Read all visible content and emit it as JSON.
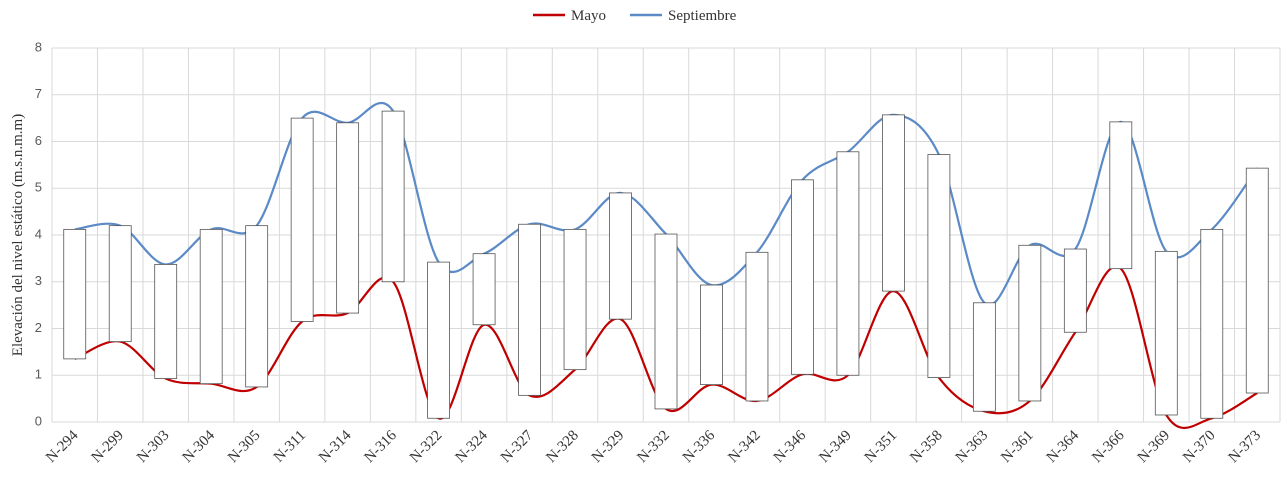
{
  "chart_data": {
    "type": "range-line",
    "ylabel": "Elevación del nivel estático (m.s.n.m.m)",
    "categories": [
      "N-294",
      "N-299",
      "N-303",
      "N-304",
      "N-305",
      "N-311",
      "N-314",
      "N-316",
      "N-322",
      "N-324",
      "N-327",
      "N-328",
      "N-329",
      "N-332",
      "N-336",
      "N-342",
      "N-346",
      "N-349",
      "N-351",
      "N-358",
      "N-363",
      "N-361",
      "N-364",
      "N-366",
      "N-369",
      "N-370",
      "N-373"
    ],
    "series": [
      {
        "name": "Mayo",
        "color": "#c00000",
        "values": [
          1.35,
          1.72,
          0.93,
          0.82,
          0.75,
          2.15,
          2.33,
          3.0,
          0.08,
          2.08,
          0.57,
          1.12,
          2.2,
          0.28,
          0.8,
          0.45,
          1.02,
          1.0,
          2.8,
          0.95,
          0.23,
          0.45,
          1.92,
          3.28,
          0.15,
          0.08,
          0.62
        ]
      },
      {
        "name": "Septiembre",
        "color": "#5b8ac6",
        "values": [
          4.12,
          4.2,
          3.37,
          4.12,
          4.2,
          6.5,
          6.4,
          6.65,
          3.42,
          3.6,
          4.23,
          4.12,
          4.9,
          4.02,
          2.93,
          3.63,
          5.18,
          5.78,
          6.57,
          5.72,
          2.55,
          3.78,
          3.7,
          6.42,
          3.65,
          4.12,
          5.43
        ]
      }
    ],
    "ylim": [
      0,
      8
    ],
    "yticks": [
      0,
      1,
      2,
      3,
      4,
      5,
      6,
      7,
      8
    ],
    "grid": true,
    "legend": "top"
  }
}
